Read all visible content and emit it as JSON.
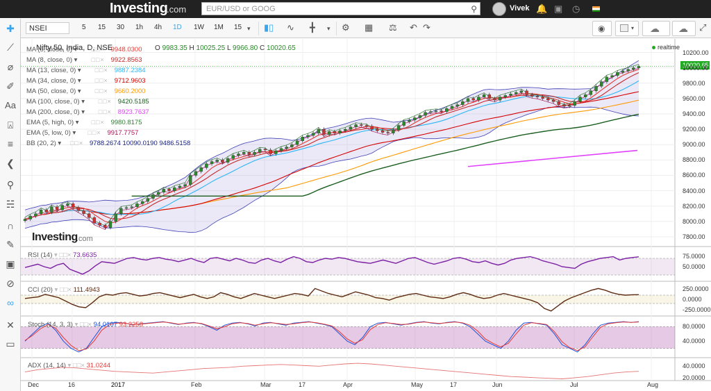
{
  "topbar": {
    "logo": "Investing",
    "logo_suffix": ".com",
    "search_placeholder": "EUR/USD or GOOG",
    "user_name": "Vivek"
  },
  "toolbar": {
    "symbol": "NSEI",
    "timeframes": [
      "5",
      "15",
      "30",
      "1h",
      "4h",
      "1D",
      "1W",
      "1M",
      "15"
    ],
    "active_timeframe": "1D"
  },
  "chart_data": [
    {
      "type": "line",
      "title": "Nifty 50, India, D, NSE",
      "ohlc": {
        "o_label": "O",
        "open": "9983.35",
        "h_label": "H",
        "high": "10025.25",
        "l_label": "L",
        "low": "9966.80",
        "c_label": "C",
        "close": "10020.65"
      },
      "status": "realtime",
      "last_price_tag": "10020.65",
      "x_labels": [
        "Dec",
        "16",
        "2017",
        "Feb",
        "Mar",
        "17",
        "Apr",
        "May",
        "17",
        "Jun",
        "Jul",
        "Aug"
      ],
      "y_labels": [
        "10200.00",
        "10000.00",
        "9800.00",
        "9600.00",
        "9400.00",
        "9200.00",
        "9000.00",
        "8800.00",
        "8600.00",
        "8400.00",
        "8200.00",
        "8000.00",
        "7800.00"
      ],
      "ylim": [
        7700,
        10250
      ],
      "indicators": [
        {
          "label": "MA (5, close, 0)",
          "value": "9948.0300",
          "color": "#e53935"
        },
        {
          "label": "MA (8, close, 0)",
          "value": "9922.8563",
          "color": "#c62828"
        },
        {
          "label": "MA (13, close, 0)",
          "value": "9887.2384",
          "color": "#29b6f6"
        },
        {
          "label": "MA (34, close, 0)",
          "value": "9712.9603",
          "color": "#d50000"
        },
        {
          "label": "MA (50, close, 0)",
          "value": "9660.2000",
          "color": "#ff9800"
        },
        {
          "label": "MA (100, close, 0)",
          "value": "9420.5185",
          "color": "#1b5e20"
        },
        {
          "label": "MA (200, close, 0)",
          "value": "8923.7637",
          "color": "#e040fb"
        },
        {
          "label": "EMA (5, high, 0)",
          "value": "9980.8175",
          "color": "#2e7d32"
        },
        {
          "label": "EMA (5, low, 0)",
          "value": "9917.7757",
          "color": "#ad1457"
        },
        {
          "label": "BB (20, 2)",
          "value": "9788.2674   10090.0190   9486.5158",
          "color": "#1a237e"
        }
      ],
      "close_series": [
        8030,
        8070,
        8100,
        8150,
        8120,
        8190,
        8150,
        8210,
        8230,
        8180,
        8140,
        8100,
        8050,
        7980,
        7950,
        7920,
        8000,
        8100,
        8170,
        8180,
        8190,
        8230,
        8260,
        8300,
        8350,
        8380,
        8420,
        8400,
        8440,
        8460,
        8480,
        8600,
        8650,
        8700,
        8750,
        8780,
        8800,
        8770,
        8820,
        8860,
        8880,
        8900,
        8870,
        8900,
        8940,
        8930,
        8880,
        8920,
        8950,
        8970,
        9000,
        9050,
        9100,
        9120,
        9150,
        9200,
        9130,
        9170,
        9150,
        9180,
        9200,
        9230,
        9260,
        9250,
        9240,
        9200,
        9180,
        9160,
        9150,
        9190,
        9250,
        9300,
        9320,
        9350,
        9380,
        9420,
        9430,
        9440,
        9430,
        9470,
        9500,
        9520,
        9560,
        9600,
        9580,
        9620,
        9650,
        9600,
        9580,
        9620,
        9640,
        9660,
        9680,
        9700,
        9650,
        9630,
        9620,
        9600,
        9580,
        9560,
        9520,
        9500,
        9510,
        9560,
        9620,
        9650,
        9700,
        9760,
        9820,
        9880,
        9900,
        9940,
        9960,
        9980,
        10000,
        10020
      ]
    },
    {
      "type": "line",
      "title": "RSI (14)",
      "value_label": "73.6635",
      "y_labels": [
        "75.0000",
        "50.0000"
      ],
      "ylim": [
        20,
        90
      ],
      "values": [
        48,
        52,
        56,
        50,
        46,
        54,
        58,
        44,
        38,
        32,
        40,
        52,
        62,
        60,
        58,
        64,
        70,
        72,
        68,
        66,
        70,
        72,
        68,
        66,
        62,
        66,
        70,
        64,
        60,
        70,
        72,
        68,
        64,
        70,
        66,
        60,
        58,
        66,
        70,
        64,
        60,
        68,
        74,
        70,
        62,
        60,
        66,
        70,
        68,
        72,
        70,
        66,
        62,
        60,
        58,
        62,
        66,
        62,
        58,
        64,
        70,
        72,
        66,
        60,
        56,
        60,
        64,
        70,
        72,
        68,
        62,
        60,
        64,
        58,
        54,
        58,
        66,
        70,
        72,
        74,
        70,
        64,
        60,
        56,
        50,
        48,
        46,
        56,
        62,
        66,
        70,
        72,
        74,
        66,
        70,
        72,
        73.6
      ]
    },
    {
      "type": "line",
      "title": "CCI (20)",
      "value_label": "111.4943",
      "y_labels": [
        "250.0000",
        "0.0000",
        "-250.0000"
      ],
      "ylim": [
        -350,
        350
      ],
      "values": [
        20,
        40,
        60,
        120,
        80,
        40,
        -40,
        -120,
        -180,
        -200,
        -80,
        60,
        120,
        100,
        140,
        160,
        120,
        80,
        100,
        140,
        160,
        120,
        80,
        40,
        80,
        120,
        60,
        20,
        60,
        160,
        120,
        60,
        20,
        80,
        140,
        100,
        60,
        20,
        60,
        100,
        140,
        120,
        80,
        260,
        200,
        140,
        100,
        60,
        120,
        180,
        140,
        100,
        40,
        20,
        -20,
        40,
        80,
        120,
        140,
        100,
        60,
        40,
        20,
        60,
        120,
        160,
        120,
        60,
        20,
        40,
        100,
        140,
        100,
        60,
        20,
        -20,
        -80,
        -220,
        -280,
        -160,
        -40,
        40,
        100,
        160,
        220,
        260,
        220,
        160,
        120,
        100,
        110,
        111
      ]
    },
    {
      "type": "line",
      "title": "Stoch (14, 3, 3)",
      "value_label_1": "94.0107",
      "value_label_2": "93.2258",
      "y_labels": [
        "80.0000",
        "40.0000"
      ],
      "ylim": [
        0,
        100
      ],
      "k_values": [
        40,
        60,
        80,
        90,
        70,
        40,
        20,
        10,
        20,
        50,
        80,
        90,
        92,
        90,
        85,
        88,
        90,
        92,
        94,
        90,
        86,
        90,
        92,
        88,
        80,
        70,
        84,
        90,
        92,
        88,
        82,
        90,
        92,
        88,
        84,
        90,
        92,
        94,
        90,
        86,
        80,
        60,
        40,
        30,
        50,
        80,
        90,
        92,
        88,
        84,
        88,
        92,
        94,
        90,
        88,
        92,
        94,
        90,
        80,
        60,
        40,
        30,
        20,
        40,
        70,
        90,
        92,
        88,
        84,
        60,
        30,
        20,
        10,
        30,
        60,
        84,
        90,
        92,
        94,
        92,
        94
      ],
      "d_values": [
        42,
        56,
        74,
        86,
        76,
        50,
        28,
        14,
        18,
        40,
        70,
        86,
        90,
        90,
        86,
        87,
        89,
        91,
        93,
        91,
        87,
        89,
        91,
        89,
        82,
        74,
        80,
        88,
        91,
        89,
        84,
        88,
        91,
        89,
        86,
        88,
        91,
        93,
        91,
        87,
        82,
        66,
        46,
        34,
        44,
        72,
        86,
        91,
        89,
        86,
        87,
        91,
        93,
        91,
        89,
        91,
        93,
        91,
        84,
        68,
        46,
        34,
        24,
        34,
        60,
        84,
        91,
        89,
        86,
        66,
        38,
        22,
        14,
        24,
        52,
        78,
        88,
        91,
        93,
        92,
        93
      ]
    },
    {
      "type": "line",
      "title": "ADX (14, 14)",
      "value_label": "31.0244",
      "y_labels": [
        "40.0000",
        "20.0000"
      ],
      "ylim": [
        15,
        50
      ],
      "values": [
        30,
        34,
        36,
        38,
        37,
        35,
        33,
        31,
        30,
        29,
        28,
        30,
        32,
        34,
        36,
        37,
        38,
        40,
        41,
        42,
        43,
        42,
        41,
        40,
        42,
        44,
        45,
        44,
        42,
        40,
        38,
        36,
        34,
        32,
        30,
        28,
        26,
        24,
        22,
        21,
        20,
        19,
        18,
        20,
        22,
        25,
        28,
        30,
        31
      ]
    }
  ]
}
